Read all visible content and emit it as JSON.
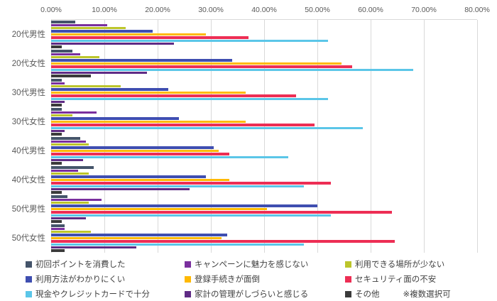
{
  "chart_data": {
    "type": "bar",
    "orientation": "horizontal",
    "title": "",
    "xlabel": "",
    "ylabel": "",
    "xlim": [
      0,
      80
    ],
    "x_ticks": [
      "0.00%",
      "10.00%",
      "20.00%",
      "30.00%",
      "40.00%",
      "50.00%",
      "60.00%",
      "70.00%",
      "80.00%"
    ],
    "grid": true,
    "legend_position": "bottom",
    "note": "※複数選択可",
    "categories": [
      "20代男性",
      "20代女性",
      "30代男性",
      "30代女性",
      "40代男性",
      "40代女性",
      "50代男性",
      "50代女性"
    ],
    "series": [
      {
        "name": "初回ポイントを消費した",
        "color": "#44546a",
        "values": [
          4.5,
          4.0,
          2.0,
          2.0,
          5.5,
          8.0,
          3.0,
          2.5
        ]
      },
      {
        "name": "キャンペーンに魅力を感じない",
        "color": "#7a2f9e",
        "values": [
          10.5,
          5.5,
          2.5,
          8.5,
          6.5,
          5.0,
          9.5,
          2.5
        ]
      },
      {
        "name": "利用できる場所が少ない",
        "color": "#bcc52b",
        "values": [
          14.0,
          9.0,
          13.0,
          4.0,
          7.0,
          7.0,
          7.0,
          7.5
        ]
      },
      {
        "name": "利用方法がわかりにくい",
        "color": "#3f4eb0",
        "values": [
          19.0,
          34.0,
          22.0,
          24.0,
          30.5,
          29.0,
          50.0,
          33.0
        ]
      },
      {
        "name": "登録手続きが面倒",
        "color": "#ffb900",
        "values": [
          29.0,
          54.5,
          36.5,
          36.5,
          31.5,
          33.5,
          40.5,
          32.0
        ]
      },
      {
        "name": "セキュリティ面の不安",
        "color": "#ed2e54",
        "values": [
          37.0,
          56.5,
          46.0,
          49.5,
          33.5,
          52.5,
          64.0,
          64.5
        ]
      },
      {
        "name": "現金やクレジットカードで十分",
        "color": "#5bc6e8",
        "values": [
          52.0,
          68.0,
          52.0,
          58.5,
          44.5,
          47.5,
          52.5,
          47.5
        ]
      },
      {
        "name": "家計の管理がしづらいと感じる",
        "color": "#5f2b85",
        "values": [
          23.0,
          18.0,
          2.5,
          2.5,
          6.0,
          26.0,
          6.5,
          16.0
        ]
      },
      {
        "name": "その他",
        "color": "#3b3b3b",
        "values": [
          2.0,
          7.5,
          2.0,
          2.0,
          2.0,
          2.0,
          2.0,
          2.5
        ]
      }
    ]
  },
  "colors": {
    "background": "#ffffff",
    "gridline": "#d9d9d9",
    "axis_text": "#595959",
    "legend_text": "#404040"
  }
}
